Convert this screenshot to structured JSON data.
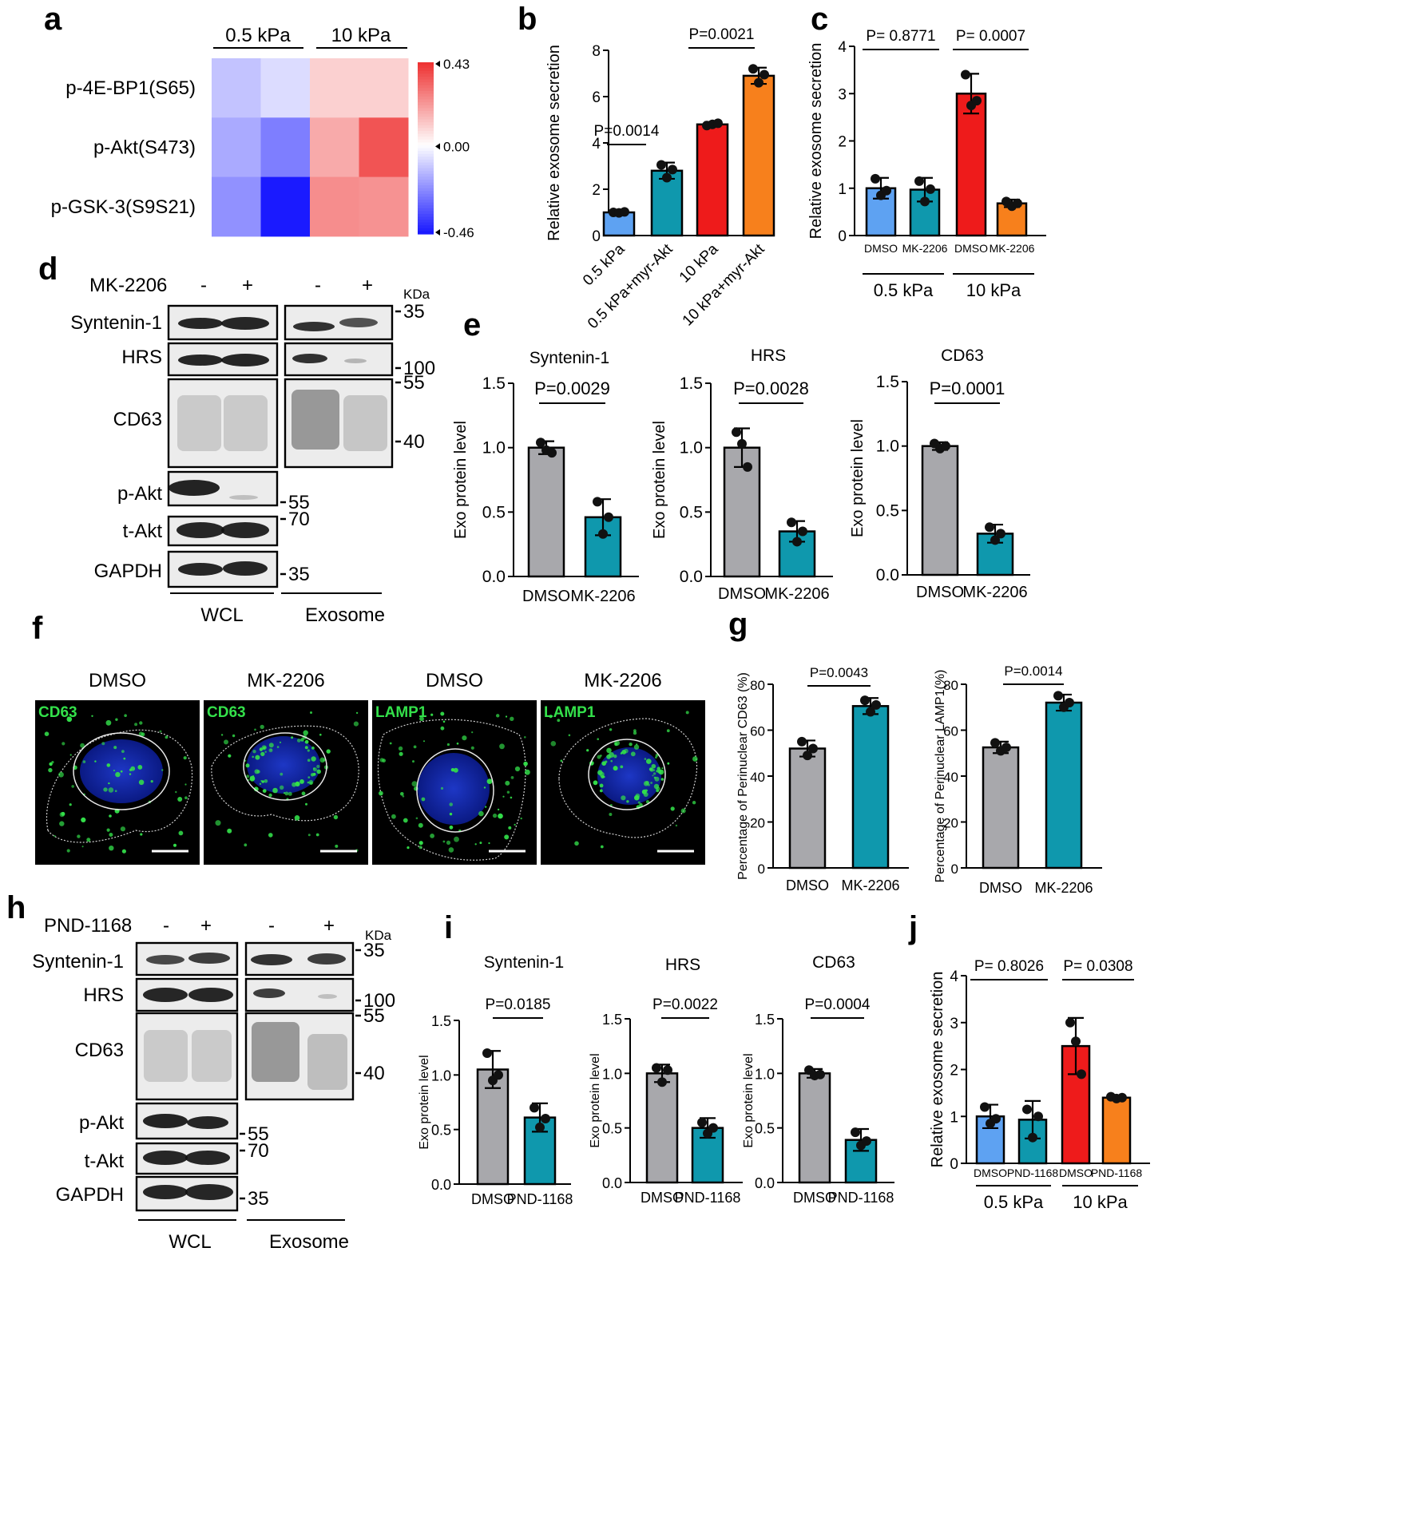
{
  "colors": {
    "gray": "#a8a8ac",
    "teal": "#0f98ad",
    "blue": "#5ea2f2",
    "red": "#ee1b1b",
    "orange": "#f7801c",
    "heat_neg": "#1a1aff",
    "heat_pos": "#ee3333"
  },
  "panel_labels": {
    "a": "a",
    "b": "b",
    "c": "c",
    "d": "d",
    "e": "e",
    "f": "f",
    "g": "g",
    "h": "h",
    "i": "i",
    "j": "j"
  },
  "panel_a": {
    "groups": [
      "0.5 kPa",
      "10 kPa"
    ],
    "rows": [
      "p-4E-BP1(S65)",
      "p-Akt(S473)",
      "p-GSK-3(S9S21)"
    ],
    "values": [
      [
        -0.12,
        -0.07,
        0.1,
        0.1
      ],
      [
        -0.17,
        -0.26,
        0.18,
        0.36
      ],
      [
        -0.22,
        -0.46,
        0.24,
        0.23
      ]
    ],
    "scale_labels": [
      "0.43",
      "0.00",
      "-0.46"
    ],
    "scale_range": [
      -0.46,
      0.43
    ]
  },
  "panel_d": {
    "treatment": "MK-2206",
    "lane_signs": [
      "-",
      "+",
      "-",
      "+"
    ],
    "kda": "KDa",
    "proteins": [
      "Syntenin-1",
      "HRS",
      "CD63",
      "p-Akt",
      "t-Akt",
      "GAPDH"
    ],
    "markers": [
      "35",
      "100",
      "55",
      "40",
      "55",
      "70",
      "35"
    ],
    "fractions": [
      "WCL",
      "Exosome"
    ]
  },
  "panel_h": {
    "treatment": "PND-1168",
    "lane_signs": [
      "-",
      "+",
      "-",
      "+"
    ],
    "kda": "KDa",
    "proteins": [
      "Syntenin-1",
      "HRS",
      "CD63",
      "p-Akt",
      "t-Akt",
      "GAPDH"
    ],
    "markers": [
      "35",
      "100",
      "55",
      "40",
      "55",
      "70",
      "35"
    ],
    "fractions": [
      "WCL",
      "Exosome"
    ]
  },
  "panel_f": {
    "titles": [
      "DMSO",
      "MK-2206",
      "DMSO",
      "MK-2206"
    ],
    "stains": [
      "CD63",
      "CD63",
      "LAMP1",
      "LAMP1"
    ]
  },
  "chart_data": [
    {
      "id": "b",
      "type": "bar",
      "title": "",
      "ylabel": "Relative exosome secretion",
      "categories": [
        "0.5 kPa",
        "0.5 kPa+myr-Akt",
        "10 kPa",
        "10 kPa+myr-Akt"
      ],
      "values": [
        1.0,
        2.8,
        4.8,
        6.9
      ],
      "errors": [
        0.05,
        0.35,
        0.1,
        0.35
      ],
      "points": [
        [
          1.0,
          0.98,
          1.02
        ],
        [
          3.05,
          2.5,
          2.85
        ],
        [
          4.75,
          4.8,
          4.85
        ],
        [
          7.2,
          6.6,
          6.95
        ]
      ],
      "ylim": [
        0,
        8
      ],
      "yticks": [
        "0",
        "2",
        "4",
        "6",
        "8"
      ],
      "pvalues": [
        {
          "label": "P=0.0014",
          "pair": [
            0,
            1
          ]
        },
        {
          "label": "P=0.0021",
          "pair": [
            2,
            3
          ]
        }
      ]
    },
    {
      "id": "c",
      "type": "bar",
      "title": "",
      "ylabel": "Relative exosome secretion",
      "categories": [
        "DMSO",
        "MK-2206",
        "DMSO",
        "MK-2206"
      ],
      "groups": [
        "0.5 kPa",
        "10 kPa"
      ],
      "values": [
        1.0,
        0.97,
        3.0,
        0.68
      ],
      "errors": [
        0.22,
        0.25,
        0.42,
        0.08
      ],
      "points": [
        [
          1.2,
          0.85,
          0.95
        ],
        [
          1.15,
          0.72,
          0.98
        ],
        [
          3.4,
          2.75,
          2.85
        ],
        [
          0.72,
          0.62,
          0.68
        ]
      ],
      "ylim": [
        0,
        4
      ],
      "yticks": [
        "0",
        "1",
        "2",
        "3",
        "4"
      ],
      "pvalues": [
        {
          "label": "P= 0.8771",
          "pair": [
            0,
            1
          ]
        },
        {
          "label": "P= 0.0007",
          "pair": [
            2,
            3
          ]
        }
      ]
    },
    {
      "id": "e1",
      "type": "bar",
      "title": "Syntenin-1",
      "ylabel": "Exo protein level",
      "categories": [
        "DMSO",
        "MK-2206"
      ],
      "values": [
        1.0,
        0.46
      ],
      "errors": [
        0.05,
        0.14
      ],
      "points": [
        [
          1.04,
          0.98,
          0.96
        ],
        [
          0.58,
          0.33,
          0.46
        ]
      ],
      "ylim": [
        0,
        1.5
      ],
      "yticks": [
        "0.0",
        "0.5",
        "1.0",
        "1.5"
      ],
      "pvalues": [
        {
          "label": "P=0.0029",
          "pair": [
            0,
            1
          ]
        }
      ]
    },
    {
      "id": "e2",
      "type": "bar",
      "title": "HRS",
      "ylabel": "Exo protein level",
      "categories": [
        "DMSO",
        "MK-2206"
      ],
      "values": [
        1.0,
        0.35
      ],
      "errors": [
        0.15,
        0.08
      ],
      "points": [
        [
          1.12,
          1.03,
          0.85
        ],
        [
          0.42,
          0.27,
          0.35
        ]
      ],
      "ylim": [
        0,
        1.5
      ],
      "yticks": [
        "0.0",
        "0.5",
        "1.0",
        "1.5"
      ],
      "pvalues": [
        {
          "label": "P=0.0028",
          "pair": [
            0,
            1
          ]
        }
      ]
    },
    {
      "id": "e3",
      "type": "bar",
      "title": "CD63",
      "ylabel": "Exo protein level",
      "categories": [
        "DMSO",
        "MK-2206"
      ],
      "values": [
        1.0,
        0.32
      ],
      "errors": [
        0.03,
        0.07
      ],
      "points": [
        [
          1.02,
          0.98,
          1.0
        ],
        [
          0.37,
          0.27,
          0.32
        ]
      ],
      "ylim": [
        0,
        1.5
      ],
      "yticks": [
        "0.0",
        "0.5",
        "1.0",
        "1.5"
      ],
      "pvalues": [
        {
          "label": "P=0.0001",
          "pair": [
            0,
            1
          ]
        }
      ]
    },
    {
      "id": "g1",
      "type": "bar",
      "title": "",
      "ylabel": "Percentage of Perinuclear CD63 (%)",
      "categories": [
        "DMSO",
        "MK-2206"
      ],
      "values": [
        52,
        70.5
      ],
      "errors": [
        3.5,
        3.5
      ],
      "points": [
        [
          55,
          49,
          52
        ],
        [
          73,
          68,
          71
        ]
      ],
      "ylim": [
        0,
        80
      ],
      "yticks": [
        "0",
        "20",
        "40",
        "60",
        "80"
      ],
      "pvalues": [
        {
          "label": "P=0.0043",
          "pair": [
            0,
            1
          ]
        }
      ]
    },
    {
      "id": "g2",
      "type": "bar",
      "title": "",
      "ylabel": "Percentage of Perinuclear LAMP1(%)",
      "categories": [
        "DMSO",
        "MK-2206"
      ],
      "values": [
        52.5,
        72
      ],
      "errors": [
        2.5,
        3.5
      ],
      "points": [
        [
          54.5,
          51,
          52.5
        ],
        [
          75,
          70,
          72
        ]
      ],
      "ylim": [
        0,
        80
      ],
      "yticks": [
        "0",
        "20",
        "40",
        "60",
        "80"
      ],
      "pvalues": [
        {
          "label": "P=0.0014",
          "pair": [
            0,
            1
          ]
        }
      ]
    },
    {
      "id": "i1",
      "type": "bar",
      "title": "Syntenin-1",
      "ylabel": "Exo protein level",
      "categories": [
        "DMSO",
        "PND-1168"
      ],
      "values": [
        1.05,
        0.61
      ],
      "errors": [
        0.17,
        0.13
      ],
      "points": [
        [
          1.2,
          0.95,
          1.0
        ],
        [
          0.7,
          0.52,
          0.6
        ]
      ],
      "ylim": [
        0,
        1.5
      ],
      "yticks": [
        "0.0",
        "0.5",
        "1.0",
        "1.5"
      ],
      "pvalues": [
        {
          "label": "P=0.0185",
          "pair": [
            0,
            1
          ]
        }
      ]
    },
    {
      "id": "i2",
      "type": "bar",
      "title": "HRS",
      "ylabel": "Exo protein level",
      "categories": [
        "DMSO",
        "PND-1168"
      ],
      "values": [
        1.0,
        0.5
      ],
      "errors": [
        0.08,
        0.09
      ],
      "points": [
        [
          1.05,
          0.92,
          1.03
        ],
        [
          0.55,
          0.45,
          0.5
        ]
      ],
      "ylim": [
        0,
        1.5
      ],
      "yticks": [
        "0.0",
        "0.5",
        "1.0",
        "1.5"
      ],
      "pvalues": [
        {
          "label": "P=0.0022",
          "pair": [
            0,
            1
          ]
        }
      ]
    },
    {
      "id": "i3",
      "type": "bar",
      "title": "CD63",
      "ylabel": "Exo protein level",
      "categories": [
        "DMSO",
        "PND-1168"
      ],
      "values": [
        1.0,
        0.39
      ],
      "errors": [
        0.04,
        0.1
      ],
      "points": [
        [
          1.03,
          0.98,
          0.99
        ],
        [
          0.46,
          0.34,
          0.38
        ]
      ],
      "ylim": [
        0,
        1.5
      ],
      "yticks": [
        "0.0",
        "0.5",
        "1.0",
        "1.5"
      ],
      "pvalues": [
        {
          "label": "P=0.0004",
          "pair": [
            0,
            1
          ]
        }
      ]
    },
    {
      "id": "j",
      "type": "bar",
      "title": "",
      "ylabel": "Relative exosome secretion",
      "categories": [
        "DMSO",
        "PND-1168",
        "DMSO",
        "PND-1168"
      ],
      "groups": [
        "0.5 kPa",
        "10 kPa"
      ],
      "values": [
        1.0,
        0.93,
        2.5,
        1.4
      ],
      "errors": [
        0.25,
        0.4,
        0.6,
        0.05
      ],
      "points": [
        [
          1.2,
          0.85,
          0.95
        ],
        [
          1.15,
          0.55,
          1.0
        ],
        [
          3.0,
          2.6,
          1.9
        ],
        [
          1.42,
          1.38,
          1.4
        ]
      ],
      "ylim": [
        0,
        4
      ],
      "yticks": [
        "0",
        "1",
        "2",
        "3",
        "4"
      ],
      "pvalues": [
        {
          "label": "P= 0.8026",
          "pair": [
            0,
            1
          ]
        },
        {
          "label": "P= 0.0308",
          "pair": [
            2,
            3
          ]
        }
      ]
    }
  ]
}
